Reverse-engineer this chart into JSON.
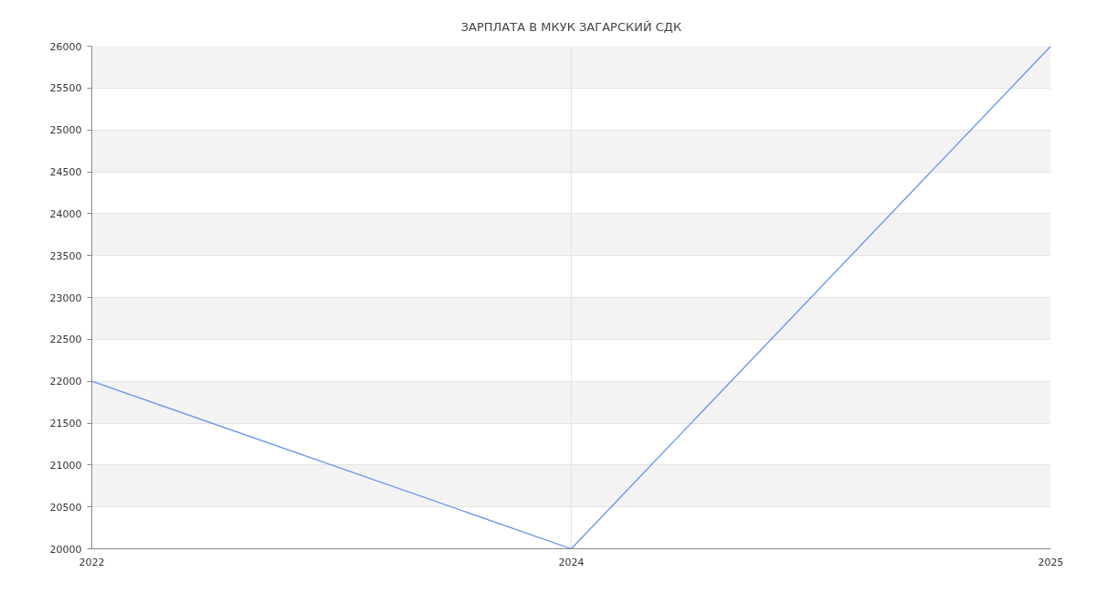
{
  "chart_data": {
    "type": "line",
    "title": "ЗАРПЛАТА В МКУК ЗАГАРСКИЙ СДК",
    "categories": [
      "2022",
      "2024",
      "2025"
    ],
    "series": [
      {
        "color": "#6495ed",
        "values": [
          22000,
          20000,
          26000
        ]
      }
    ],
    "ylim": [
      20000,
      26000
    ],
    "yticks": [
      20000,
      20500,
      21000,
      21500,
      22000,
      22500,
      23000,
      23500,
      24000,
      24500,
      25000,
      25500,
      26000
    ],
    "grid": true
  }
}
